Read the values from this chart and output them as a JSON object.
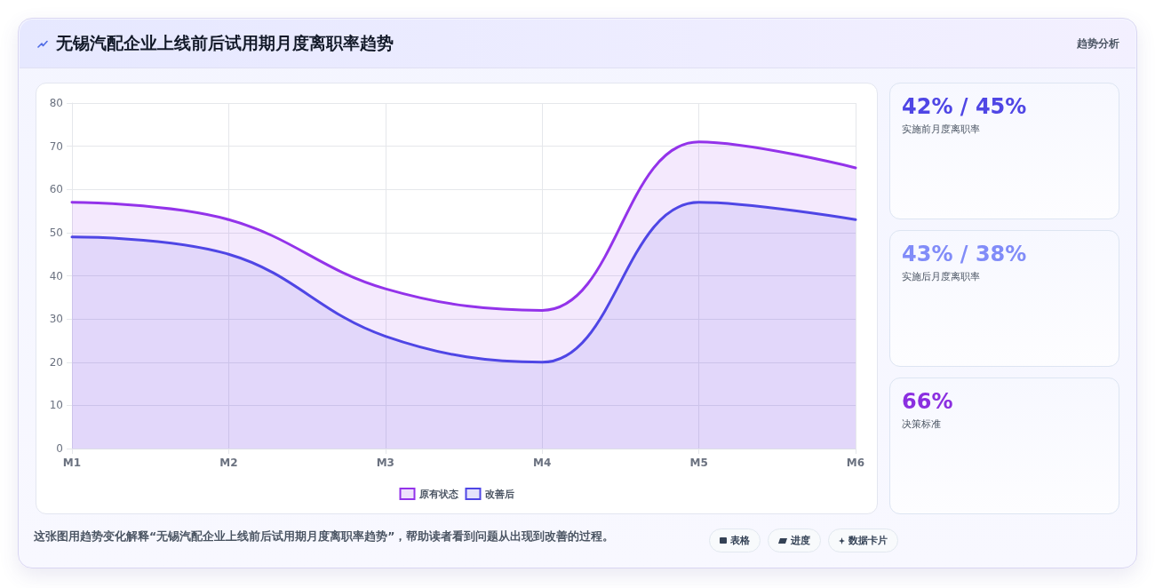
{
  "chart_data": {
    "type": "area",
    "title": "无锡汽配企业上线前后试用期月度离职率趋势",
    "subtitle": "趋势分析",
    "categories": [
      "M1",
      "M2",
      "M3",
      "M4",
      "M5",
      "M6"
    ],
    "series": [
      {
        "name": "原有状态",
        "color": "#9333ea",
        "values": [
          57,
          53,
          37,
          32,
          71,
          65
        ]
      },
      {
        "name": "改善后",
        "color": "#4f46e5",
        "values": [
          49,
          45,
          26,
          20,
          57,
          53
        ]
      }
    ],
    "ylim": [
      0,
      80
    ],
    "yticks": [
      0,
      10,
      20,
      30,
      40,
      50,
      60,
      70,
      80
    ],
    "grid": true,
    "legend": "bottom",
    "annotations": [
      "42% / 45%",
      "实施前月度离职率",
      "43% / 38%",
      "实施后月度离职率",
      "66%",
      "决策标准",
      "这张图用趋势变化解释“无锡汽配企业上线前后试用期月度离职率趋势”，帮助读者看到问题从出现到改善的过程。",
      "表格",
      "进度",
      "数据卡片"
    ]
  }
}
